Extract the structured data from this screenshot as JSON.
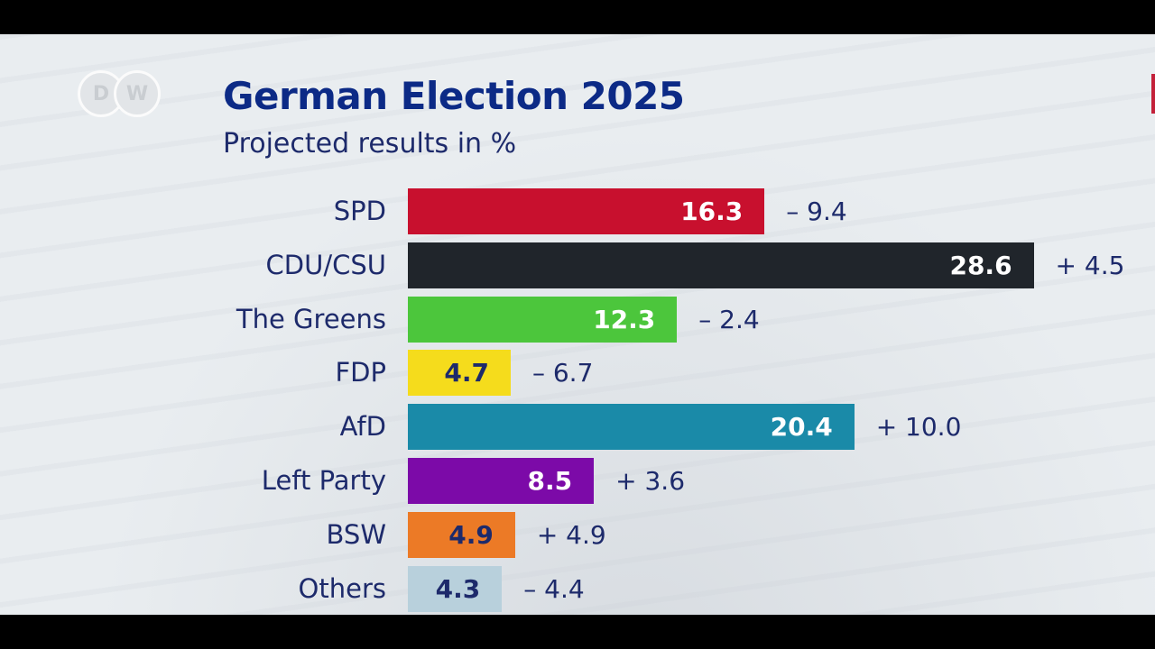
{
  "logo_text": "DW",
  "chart_data": {
    "type": "bar",
    "orientation": "horizontal",
    "title": "German Election 2025",
    "subtitle": "Projected results in %",
    "categories": [
      "SPD",
      "CDU/CSU",
      "The Greens",
      "FDP",
      "AfD",
      "Left Party",
      "BSW",
      "Others"
    ],
    "values": [
      16.3,
      28.6,
      12.3,
      4.7,
      20.4,
      8.5,
      4.9,
      4.3
    ],
    "value_labels": [
      "16.3",
      "28.6",
      "12.3",
      "4.7",
      "20.4",
      "8.5",
      "4.9",
      "4.3"
    ],
    "changes": [
      "– 9.4",
      "+ 4.5",
      "– 2.4",
      "– 6.7",
      "+ 10.0",
      "+ 3.6",
      "+ 4.9",
      "– 4.4"
    ],
    "colors": [
      "#c8102e",
      "#20252b",
      "#4cc63c",
      "#f5dc1c",
      "#1a8aa8",
      "#7c0aa8",
      "#ec7a26",
      "#b8d0dc"
    ],
    "label_colors": [
      "#ffffff",
      "#ffffff",
      "#ffffff",
      "#1d2a6b",
      "#ffffff",
      "#ffffff",
      "#1d2a6b",
      "#1d2a6b"
    ],
    "grid": false,
    "legend": "none"
  }
}
